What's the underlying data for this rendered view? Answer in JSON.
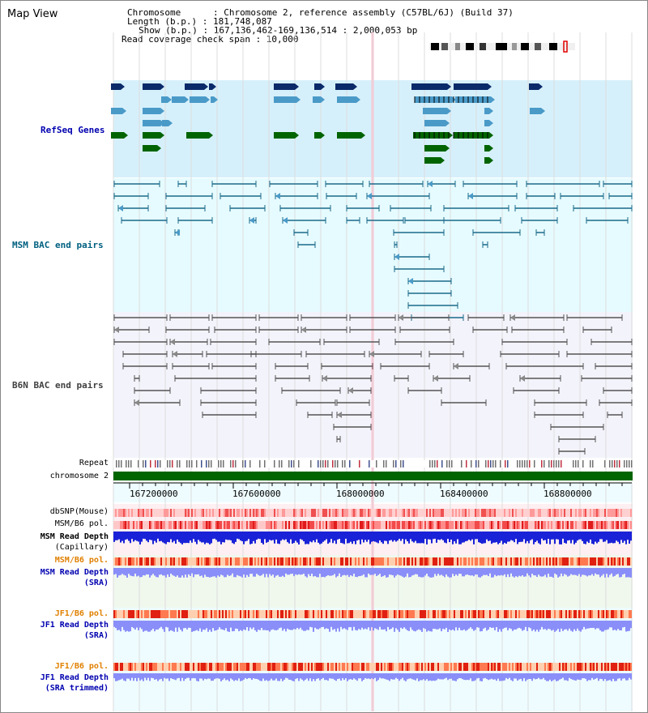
{
  "header": {
    "title": "Map View",
    "chromosome_line": "Chromosome      : Chromosome 2, reference assembly (C57BL/6J) (Build 37)",
    "length_line": "Length (b.p.) : 181,748,087",
    "show_line": "Show (b.p.) : 167,136,462-169,136,514 : 2,000,053 bp",
    "coverage_line": "Read coverage check span : 10,000"
  },
  "tracks": {
    "refseq": {
      "label": "RefSeq Genes",
      "color": "#0000a0",
      "bg": "#d6f0fb"
    },
    "msm_bac": {
      "label": "MSM BAC end pairs",
      "color": "#006080",
      "bg": "#e6fbff"
    },
    "b6n_bac": {
      "label": "B6N BAC end pairs",
      "color": "#404040",
      "bg": "#f3f3fb"
    },
    "repeat": {
      "label": "Repeat"
    },
    "chromosome": {
      "label": "chromosome 2",
      "color": "#006400"
    },
    "dbsnp": {
      "label": "dbSNP(Mouse)"
    },
    "msm_b6_pol_1": {
      "label": "MSM/B6 pol."
    },
    "msm_read_depth_cap": {
      "label1": "MSM Read Depth",
      "label2": "(Capillary)"
    },
    "msm_b6_pol_2": {
      "label": "MSM/B6 pol.",
      "color": "#e08000"
    },
    "msm_read_depth_sra": {
      "label1": "MSM Read Depth",
      "label2": "(SRA)"
    },
    "jf1_b6_pol_1": {
      "label": "JF1/B6 pol.",
      "color": "#e08000"
    },
    "jf1_read_depth_sra": {
      "label1": "JF1 Read Depth",
      "label2": "(SRA)"
    },
    "jf1_b6_pol_2": {
      "label": "JF1/B6 pol.",
      "color": "#e08000"
    },
    "jf1_read_depth_trim": {
      "label1": "JF1 Read Depth",
      "label2": "(SRA trimmed)"
    }
  },
  "axis": {
    "ticks": [
      "167200000",
      "167600000",
      "168000000",
      "168400000",
      "168800000"
    ]
  }
}
